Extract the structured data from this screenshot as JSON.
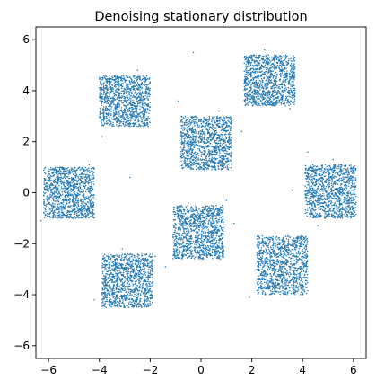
{
  "chart_data": {
    "type": "scatter",
    "title": "Denoising stationary distribution",
    "xlabel": "",
    "ylabel": "",
    "xlim": [
      -6.5,
      6.5
    ],
    "ylim": [
      -6.5,
      6.5
    ],
    "xticks": [
      -6,
      -4,
      -2,
      0,
      2,
      4,
      6
    ],
    "yticks": [
      -6,
      -4,
      -2,
      0,
      2,
      4,
      6
    ],
    "xtick_labels": [
      "−6",
      "−4",
      "−2",
      "0",
      "2",
      "4",
      "6"
    ],
    "ytick_labels": [
      "−6",
      "−4",
      "−2",
      "0",
      "2",
      "4",
      "6"
    ],
    "grid": false,
    "legend": "none",
    "marker_color": "#1f77b4",
    "clusters": [
      {
        "x_range": [
          -6.2,
          -4.2
        ],
        "y_range": [
          -1.0,
          1.0
        ]
      },
      {
        "x_range": [
          -4.0,
          -2.0
        ],
        "y_range": [
          2.6,
          4.6
        ]
      },
      {
        "x_range": [
          -3.9,
          -1.9
        ],
        "y_range": [
          -4.5,
          -2.4
        ]
      },
      {
        "x_range": [
          -0.8,
          1.2
        ],
        "y_range": [
          0.9,
          3.0
        ]
      },
      {
        "x_range": [
          -1.1,
          0.9
        ],
        "y_range": [
          -2.6,
          -0.5
        ]
      },
      {
        "x_range": [
          1.7,
          3.7
        ],
        "y_range": [
          3.4,
          5.4
        ]
      },
      {
        "x_range": [
          4.1,
          6.1
        ],
        "y_range": [
          -1.0,
          1.1
        ]
      },
      {
        "x_range": [
          2.2,
          4.2
        ],
        "y_range": [
          -4.0,
          -1.7
        ]
      }
    ],
    "points_per_cluster": 1100,
    "outliers": [
      [
        -0.3,
        5.5
      ],
      [
        -0.9,
        3.6
      ],
      [
        -3.9,
        2.2
      ],
      [
        -2.8,
        0.6
      ],
      [
        -6.3,
        -1.1
      ],
      [
        4.2,
        1.6
      ],
      [
        3.5,
        3.3
      ],
      [
        1.0,
        -0.3
      ],
      [
        3.6,
        0.1
      ],
      [
        -1.4,
        -2.9
      ],
      [
        1.3,
        -1.2
      ],
      [
        1.6,
        2.4
      ],
      [
        2.3,
        -2.4
      ],
      [
        -4.2,
        -4.2
      ],
      [
        -0.5,
        -0.4
      ],
      [
        0.7,
        3.2
      ],
      [
        -2.5,
        4.8
      ],
      [
        2.5,
        5.6
      ],
      [
        -1.8,
        -2.5
      ],
      [
        4.6,
        -1.3
      ],
      [
        5.2,
        1.3
      ],
      [
        -3.1,
        -2.2
      ],
      [
        -4.4,
        1.1
      ],
      [
        1.9,
        -4.1
      ]
    ]
  }
}
